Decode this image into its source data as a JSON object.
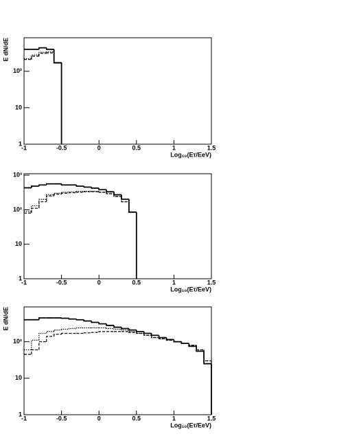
{
  "chart_data": [
    {
      "type": "histogram",
      "ylabel": "E dN/dE",
      "xlabel": "Log₁₀(Eτ/EeV)",
      "log_y": true,
      "xlim": [
        -1,
        1.5
      ],
      "xticks": [
        -1,
        -0.5,
        0,
        0.5,
        1,
        1.5
      ],
      "ylim": [
        1,
        830
      ],
      "yticks": [
        1,
        10,
        {
          "value": 100,
          "label": "10²"
        }
      ],
      "bins": [
        -1,
        -0.9,
        -0.8,
        -0.7,
        -0.6,
        -0.5
      ],
      "series": [
        {
          "color": "#000000",
          "dash": "solid",
          "values": [
            400,
            400,
            440,
            400,
            170
          ]
        },
        {
          "color": "#000000",
          "dash": "dashed",
          "values": [
            210,
            260,
            310,
            320,
            170
          ]
        },
        {
          "color": "#000000",
          "dash": "dotted",
          "values": [
            220,
            280,
            330,
            340,
            175
          ]
        }
      ]
    },
    {
      "type": "histogram",
      "xlabel": "Log₁₀(Eτ/EeV)",
      "log_y": true,
      "xlim": [
        -1,
        1.5
      ],
      "xticks": [
        -1,
        -0.5,
        0,
        0.5,
        1,
        1.5
      ],
      "ylim": [
        1,
        1100
      ],
      "yticks": [
        1,
        10,
        {
          "value": 100,
          "label": "10²"
        },
        {
          "value": 1000,
          "label": "10³"
        }
      ],
      "bins": [
        -1,
        -0.9,
        -0.8,
        -0.7,
        -0.6,
        -0.5,
        -0.4,
        -0.3,
        -0.2,
        -0.1,
        0,
        0.1,
        0.2,
        0.3,
        0.4,
        0.5
      ],
      "series": [
        {
          "color": "#000000",
          "dash": "solid",
          "values": [
            430,
            480,
            520,
            560,
            560,
            520,
            520,
            480,
            450,
            420,
            380,
            330,
            270,
            200,
            85
          ]
        },
        {
          "color": "#000000",
          "dash": "dashed",
          "values": [
            80,
            110,
            170,
            250,
            280,
            300,
            310,
            320,
            330,
            330,
            320,
            290,
            240,
            170,
            85
          ]
        },
        {
          "color": "#000000",
          "dash": "dotted",
          "values": [
            90,
            130,
            200,
            270,
            300,
            320,
            330,
            340,
            340,
            340,
            320,
            290,
            240,
            170,
            85
          ]
        }
      ]
    },
    {
      "type": "histogram",
      "ylabel": "E dN/dE",
      "xlabel": "Log₁₀(Eτ/EeV)",
      "log_y": true,
      "xlim": [
        -1,
        1.5
      ],
      "xticks": [
        -1,
        -0.5,
        0,
        0.5,
        1,
        1.5
      ],
      "ylim": [
        1,
        900
      ],
      "yticks": [
        1,
        10,
        {
          "value": 100,
          "label": "10²"
        }
      ],
      "bins": [
        -1,
        -0.9,
        -0.8,
        -0.7,
        -0.6,
        -0.5,
        -0.4,
        -0.3,
        -0.2,
        -0.1,
        0,
        0.1,
        0.2,
        0.3,
        0.4,
        0.5,
        0.6,
        0.7,
        0.8,
        0.9,
        1,
        1.1,
        1.2,
        1.3,
        1.4,
        1.5
      ],
      "series": [
        {
          "color": "#000000",
          "dash": "solid",
          "values": [
            400,
            400,
            450,
            450,
            450,
            440,
            420,
            400,
            370,
            340,
            310,
            280,
            250,
            230,
            210,
            190,
            170,
            150,
            130,
            115,
            100,
            90,
            75,
            55,
            25
          ]
        },
        {
          "color": "#000000",
          "dash": "dashed",
          "values": [
            45,
            60,
            100,
            140,
            160,
            170,
            170,
            170,
            175,
            180,
            190,
            190,
            190,
            190,
            180,
            170,
            150,
            130,
            120,
            110,
            100,
            90,
            80,
            60,
            30
          ]
        },
        {
          "color": "#000000",
          "dash": "dotted",
          "values": [
            60,
            110,
            170,
            190,
            210,
            220,
            230,
            240,
            240,
            240,
            240,
            230,
            220,
            210,
            190,
            170,
            150,
            130,
            120,
            110,
            100,
            90,
            80,
            60,
            30
          ]
        }
      ]
    }
  ]
}
